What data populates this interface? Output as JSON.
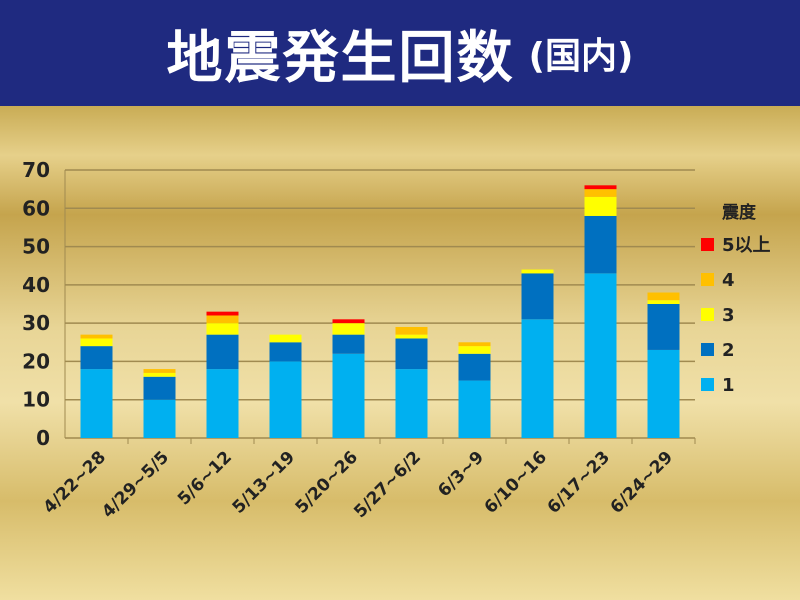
{
  "header": {
    "title": "地震発生回数",
    "subtitle": "(国内)"
  },
  "chart_data": {
    "type": "bar",
    "stacked": true,
    "title": "地震発生回数 (国内)",
    "categories": [
      "4/22~28",
      "4/29~5/5",
      "5/6~12",
      "5/13~19",
      "5/20~26",
      "5/27~6/2",
      "6/3~9",
      "6/10~16",
      "6/17~23",
      "6/24~29"
    ],
    "ylim": [
      0,
      70
    ],
    "yticks": [
      0,
      10,
      20,
      30,
      40,
      50,
      60,
      70
    ],
    "grid": true,
    "legend_title": "震度",
    "legend_position": "right",
    "series": [
      {
        "name": "1",
        "color": "#00b0f0",
        "values": [
          18,
          10,
          18,
          20,
          22,
          18,
          15,
          31,
          43,
          23
        ]
      },
      {
        "name": "2",
        "color": "#0070c0",
        "values": [
          6,
          6,
          9,
          5,
          5,
          8,
          7,
          12,
          15,
          12
        ]
      },
      {
        "name": "3",
        "color": "#ffff00",
        "values": [
          2,
          1,
          3,
          2,
          3,
          1,
          2,
          1,
          5,
          1
        ]
      },
      {
        "name": "4",
        "color": "#ffc000",
        "values": [
          1,
          1,
          2,
          0,
          0,
          2,
          1,
          0,
          2,
          2
        ]
      },
      {
        "name": "5以上",
        "color": "#ff0000",
        "values": [
          0,
          0,
          1,
          0,
          1,
          0,
          0,
          0,
          1,
          0
        ]
      }
    ]
  }
}
